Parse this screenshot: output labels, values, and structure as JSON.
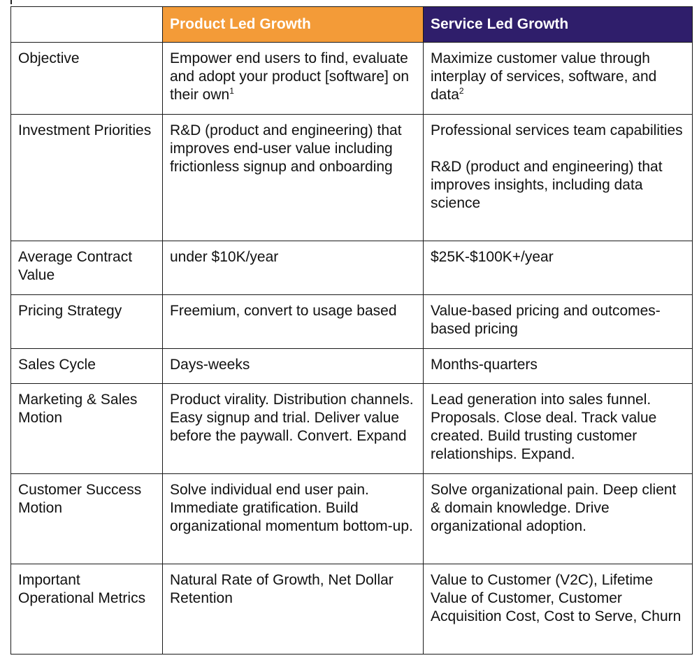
{
  "header": {
    "col1": "",
    "col2": "Product Led Growth",
    "col3": "Service Led Growth"
  },
  "rows": [
    {
      "label": "Objective",
      "plg": "Empower end users to find, evaluate and adopt your product [software] on their own",
      "plg_sup": "1",
      "slg": "Maximize customer value through interplay of services, software, and data",
      "slg_sup": "2"
    },
    {
      "label": "Investment Priorities",
      "plg": "R&D (product and engineering) that improves end-user value including frictionless signup and onboarding",
      "slg_p1": "Professional services team capabilities",
      "slg_p2": "R&D (product and engineering) that improves insights, including data science"
    },
    {
      "label": "Average Contract Value",
      "plg": "under $10K/year",
      "slg": "$25K-$100K+/year"
    },
    {
      "label": "Pricing Strategy",
      "plg": "Freemium, convert to usage based",
      "slg": "Value-based pricing and outcomes-based pricing"
    },
    {
      "label": "Sales Cycle",
      "plg": "Days-weeks",
      "slg": "Months-quarters"
    },
    {
      "label": "Marketing & Sales Motion",
      "plg": "Product virality. Distribution channels. Easy signup and trial. Deliver value before the paywall. Convert. Expand",
      "slg": "Lead generation into sales funnel. Proposals. Close deal. Track value created. Build trusting customer relationships. Expand."
    },
    {
      "label": "Customer Success Motion",
      "plg": "Solve individual end user pain. Immediate gratification. Build organizational momentum bottom-up.",
      "slg": "Solve organizational pain. Deep client & domain knowledge. Drive organizational adoption."
    },
    {
      "label": "Important Operational Metrics",
      "plg": "Natural Rate of Growth, Net Dollar Retention",
      "slg": "Value to Customer (V2C), Lifetime Value of Customer, Customer Acquisition Cost, Cost to Serve, Churn"
    }
  ],
  "colors": {
    "plg_header": "#f39b38",
    "slg_header": "#2f1e6b",
    "border": "#1a1a1a"
  }
}
